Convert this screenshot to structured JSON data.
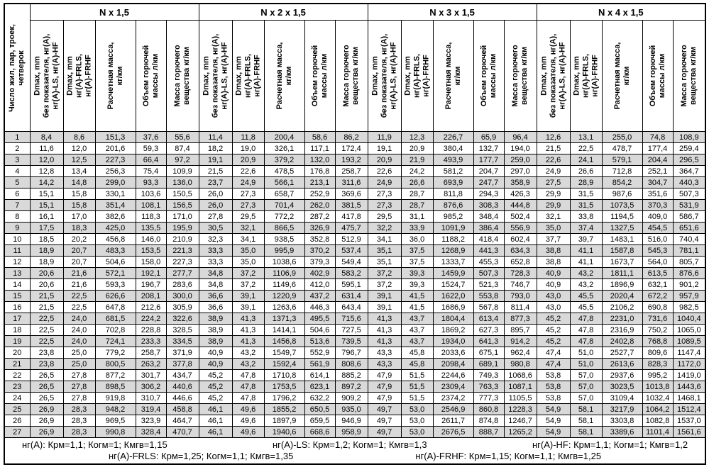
{
  "table": {
    "row_header": "Число жил, пар, троек,\nчетверок",
    "groups": [
      "N x 1,5",
      "N x 2 x 1,5",
      "N x 3 x 1,5",
      "N x 4 x 1,5"
    ],
    "subcolumns": [
      "Dmax, mm\nбез показателя, нг(А),\nнг(А)-LS, нг(А)-HF",
      "Dmax, mm\nнг(А)-FRLS,\nнг(А)-FRHF",
      "Расчетная масса,\nкг/км",
      "Объем горючей\nмассы л/км",
      "Масса горючего\nвещества кг/км"
    ],
    "rows": [
      {
        "n": "1",
        "values": [
          "8,4",
          "8,6",
          "151,3",
          "37,6",
          "55,6",
          "11,4",
          "11,8",
          "200,4",
          "58,6",
          "86,2",
          "11,9",
          "12,3",
          "226,7",
          "65,9",
          "96,4",
          "12,6",
          "13,1",
          "255,0",
          "74,8",
          "108,9"
        ]
      },
      {
        "n": "2",
        "values": [
          "11,6",
          "12,0",
          "201,6",
          "59,3",
          "87,4",
          "18,2",
          "19,0",
          "326,1",
          "117,1",
          "172,4",
          "19,1",
          "20,9",
          "380,4",
          "132,7",
          "194,0",
          "21,5",
          "22,5",
          "478,7",
          "177,4",
          "259,4"
        ]
      },
      {
        "n": "3",
        "values": [
          "12,0",
          "12,5",
          "227,3",
          "66,4",
          "97,2",
          "19,1",
          "20,9",
          "379,2",
          "132,0",
          "193,2",
          "20,9",
          "21,9",
          "493,9",
          "177,7",
          "259,0",
          "22,6",
          "24,1",
          "579,1",
          "204,4",
          "296,5"
        ]
      },
      {
        "n": "4",
        "values": [
          "12,8",
          "13,4",
          "256,3",
          "75,4",
          "109,9",
          "21,5",
          "22,6",
          "478,5",
          "176,8",
          "258,7",
          "22,6",
          "24,2",
          "581,2",
          "204,7",
          "297,0",
          "24,9",
          "26,6",
          "712,8",
          "252,1",
          "364,7"
        ]
      },
      {
        "n": "5",
        "values": [
          "14,2",
          "14,8",
          "299,0",
          "93,3",
          "136,0",
          "23,7",
          "24,9",
          "566,1",
          "213,1",
          "311,6",
          "24,9",
          "26,6",
          "693,9",
          "247,7",
          "358,9",
          "27,5",
          "28,9",
          "854,2",
          "304,7",
          "440,3"
        ]
      },
      {
        "n": "6",
        "values": [
          "15,1",
          "15,8",
          "330,1",
          "103,6",
          "150,5",
          "26,0",
          "27,3",
          "658,7",
          "252,9",
          "369,6",
          "27,3",
          "28,7",
          "811,8",
          "294,3",
          "426,3",
          "29,9",
          "31,5",
          "987,6",
          "351,6",
          "507,3"
        ]
      },
      {
        "n": "7",
        "values": [
          "15,1",
          "15,8",
          "351,4",
          "108,1",
          "156,5",
          "26,0",
          "27,3",
          "701,4",
          "262,0",
          "381,5",
          "27,3",
          "28,7",
          "876,6",
          "308,3",
          "444,8",
          "29,9",
          "31,5",
          "1073,5",
          "370,3",
          "531,9"
        ]
      },
      {
        "n": "8",
        "values": [
          "16,1",
          "17,0",
          "382,6",
          "118,3",
          "171,0",
          "27,8",
          "29,5",
          "772,2",
          "287,2",
          "417,8",
          "29,5",
          "31,1",
          "985,2",
          "348,4",
          "502,4",
          "32,1",
          "33,8",
          "1194,5",
          "409,0",
          "586,7"
        ]
      },
      {
        "n": "9",
        "values": [
          "17,5",
          "18,3",
          "425,0",
          "135,5",
          "195,9",
          "30,5",
          "32,1",
          "866,5",
          "326,9",
          "475,7",
          "32,2",
          "33,9",
          "1091,9",
          "386,4",
          "556,9",
          "35,0",
          "37,4",
          "1327,5",
          "454,5",
          "651,6"
        ]
      },
      {
        "n": "10",
        "values": [
          "18,5",
          "20,2",
          "456,8",
          "146,0",
          "210,9",
          "32,3",
          "34,1",
          "938,5",
          "352,8",
          "512,9",
          "34,1",
          "36,0",
          "1188,2",
          "418,4",
          "602,4",
          "37,7",
          "39,7",
          "1483,1",
          "516,0",
          "740,4"
        ]
      },
      {
        "n": "11",
        "values": [
          "18,9",
          "20,7",
          "483,3",
          "153,5",
          "221,3",
          "33,3",
          "35,0",
          "995,9",
          "370,2",
          "537,4",
          "35,1",
          "37,5",
          "1268,9",
          "441,3",
          "634,3",
          "38,8",
          "41,1",
          "1587,8",
          "545,3",
          "781,1"
        ]
      },
      {
        "n": "12",
        "values": [
          "18,9",
          "20,7",
          "504,6",
          "158,0",
          "227,3",
          "33,3",
          "35,0",
          "1038,6",
          "379,3",
          "549,4",
          "35,1",
          "37,5",
          "1333,7",
          "455,3",
          "652,8",
          "38,8",
          "41,1",
          "1673,7",
          "564,0",
          "805,7"
        ]
      },
      {
        "n": "13",
        "values": [
          "20,6",
          "21,6",
          "572,1",
          "192,1",
          "277,7",
          "34,8",
          "37,2",
          "1106,9",
          "402,9",
          "583,2",
          "37,2",
          "39,3",
          "1459,9",
          "507,3",
          "728,3",
          "40,9",
          "43,2",
          "1811,1",
          "613,5",
          "876,6"
        ]
      },
      {
        "n": "14",
        "values": [
          "20,6",
          "21,6",
          "593,3",
          "196,7",
          "283,6",
          "34,8",
          "37,2",
          "1149,6",
          "412,0",
          "595,1",
          "37,2",
          "39,3",
          "1524,7",
          "521,3",
          "746,7",
          "40,9",
          "43,2",
          "1896,9",
          "632,1",
          "901,2"
        ]
      },
      {
        "n": "15",
        "values": [
          "21,5",
          "22,5",
          "626,6",
          "208,1",
          "300,0",
          "36,6",
          "39,1",
          "1220,9",
          "437,2",
          "631,4",
          "39,1",
          "41,5",
          "1622,0",
          "553,8",
          "793,0",
          "43,0",
          "45,5",
          "2020,4",
          "672,2",
          "957,9"
        ]
      },
      {
        "n": "16",
        "values": [
          "21,5",
          "22,5",
          "647,8",
          "212,6",
          "305,9",
          "36,6",
          "39,1",
          "1263,6",
          "446,3",
          "643,4",
          "39,1",
          "41,5",
          "1686,9",
          "567,8",
          "811,4",
          "43,0",
          "45,5",
          "2106,2",
          "690,8",
          "982,5"
        ]
      },
      {
        "n": "17",
        "values": [
          "22,5",
          "24,0",
          "681,5",
          "224,2",
          "322,6",
          "38,9",
          "41,3",
          "1371,3",
          "495,5",
          "715,6",
          "41,3",
          "43,7",
          "1804,4",
          "613,4",
          "877,3",
          "45,2",
          "47,8",
          "2231,0",
          "731,6",
          "1040,4"
        ]
      },
      {
        "n": "18",
        "values": [
          "22,5",
          "24,0",
          "702,8",
          "228,8",
          "328,5",
          "38,9",
          "41,3",
          "1414,1",
          "504,6",
          "727,5",
          "41,3",
          "43,7",
          "1869,2",
          "627,3",
          "895,7",
          "45,2",
          "47,8",
          "2316,9",
          "750,2",
          "1065,0"
        ]
      },
      {
        "n": "19",
        "values": [
          "22,5",
          "24,0",
          "724,1",
          "233,3",
          "334,5",
          "38,9",
          "41,3",
          "1456,8",
          "513,6",
          "739,5",
          "41,3",
          "43,7",
          "1934,0",
          "641,3",
          "914,2",
          "45,2",
          "47,8",
          "2402,8",
          "768,8",
          "1089,5"
        ]
      },
      {
        "n": "20",
        "values": [
          "23,8",
          "25,0",
          "779,2",
          "258,7",
          "371,9",
          "40,9",
          "43,2",
          "1549,7",
          "552,9",
          "796,7",
          "43,3",
          "45,8",
          "2033,6",
          "675,1",
          "962,4",
          "47,4",
          "51,0",
          "2527,7",
          "809,6",
          "1147,4"
        ]
      },
      {
        "n": "21",
        "values": [
          "23,8",
          "25,0",
          "800,5",
          "263,2",
          "377,8",
          "40,9",
          "43,2",
          "1592,4",
          "561,9",
          "808,6",
          "43,3",
          "45,8",
          "2098,4",
          "689,1",
          "980,8",
          "47,4",
          "51,0",
          "2613,6",
          "828,3",
          "1172,0"
        ]
      },
      {
        "n": "22",
        "values": [
          "26,5",
          "27,8",
          "877,2",
          "301,7",
          "434,7",
          "45,2",
          "47,8",
          "1710,8",
          "614,1",
          "885,2",
          "47,9",
          "51,5",
          "2244,6",
          "749,3",
          "1068,6",
          "53,8",
          "57,0",
          "2937,6",
          "995,2",
          "1419,0"
        ]
      },
      {
        "n": "23",
        "values": [
          "26,5",
          "27,8",
          "898,5",
          "306,2",
          "440,6",
          "45,2",
          "47,8",
          "1753,5",
          "623,1",
          "897,2",
          "47,9",
          "51,5",
          "2309,4",
          "763,3",
          "1087,1",
          "53,8",
          "57,0",
          "3023,5",
          "1013,8",
          "1443,6"
        ]
      },
      {
        "n": "24",
        "values": [
          "26,5",
          "27,8",
          "919,8",
          "310,7",
          "446,6",
          "45,2",
          "47,8",
          "1796,2",
          "632,2",
          "909,2",
          "47,9",
          "51,5",
          "2374,2",
          "777,3",
          "1105,5",
          "53,8",
          "57,0",
          "3109,4",
          "1032,4",
          "1468,1"
        ]
      },
      {
        "n": "25",
        "values": [
          "26,9",
          "28,3",
          "948,2",
          "319,4",
          "458,8",
          "46,1",
          "49,6",
          "1855,2",
          "650,5",
          "935,0",
          "49,7",
          "53,0",
          "2546,9",
          "860,8",
          "1228,3",
          "54,9",
          "58,1",
          "3217,9",
          "1064,2",
          "1512,4"
        ]
      },
      {
        "n": "26",
        "values": [
          "26,9",
          "28,3",
          "969,5",
          "323,9",
          "464,7",
          "46,1",
          "49,6",
          "1897,9",
          "659,5",
          "946,9",
          "49,7",
          "53,0",
          "2611,7",
          "874,8",
          "1246,7",
          "54,9",
          "58,1",
          "3303,8",
          "1082,8",
          "1537,0"
        ]
      },
      {
        "n": "27",
        "values": [
          "26,9",
          "28,3",
          "990,8",
          "328,4",
          "470,7",
          "46,1",
          "49,6",
          "1940,6",
          "668,6",
          "958,9",
          "49,7",
          "53,0",
          "2676,5",
          "888,7",
          "1265,2",
          "54,9",
          "58,1",
          "3389,6",
          "1101,4",
          "1561,6"
        ]
      }
    ]
  },
  "footnotes": {
    "line1": [
      "нг(А): Крм=1,1;  Когм=1;  Кмгв=1,15",
      "нг(А)-LS: Крм=1,2;  Когм=1;  Кмгв=1,3",
      "нг(А)-HF: Крм=1,1;  Когм=1;  Кмгв=1,2"
    ],
    "line2": [
      "нг(А)-FRLS: Крм=1,25;  Когм=1,1;  Кмгв=1,35",
      "нг(А)-FRHF: Крм=1,15;  Когм=1,1;  Кмгв=1,25"
    ]
  },
  "colors": {
    "row_shaded": "#d9d9d9",
    "border": "#000000",
    "background": "#ffffff"
  }
}
